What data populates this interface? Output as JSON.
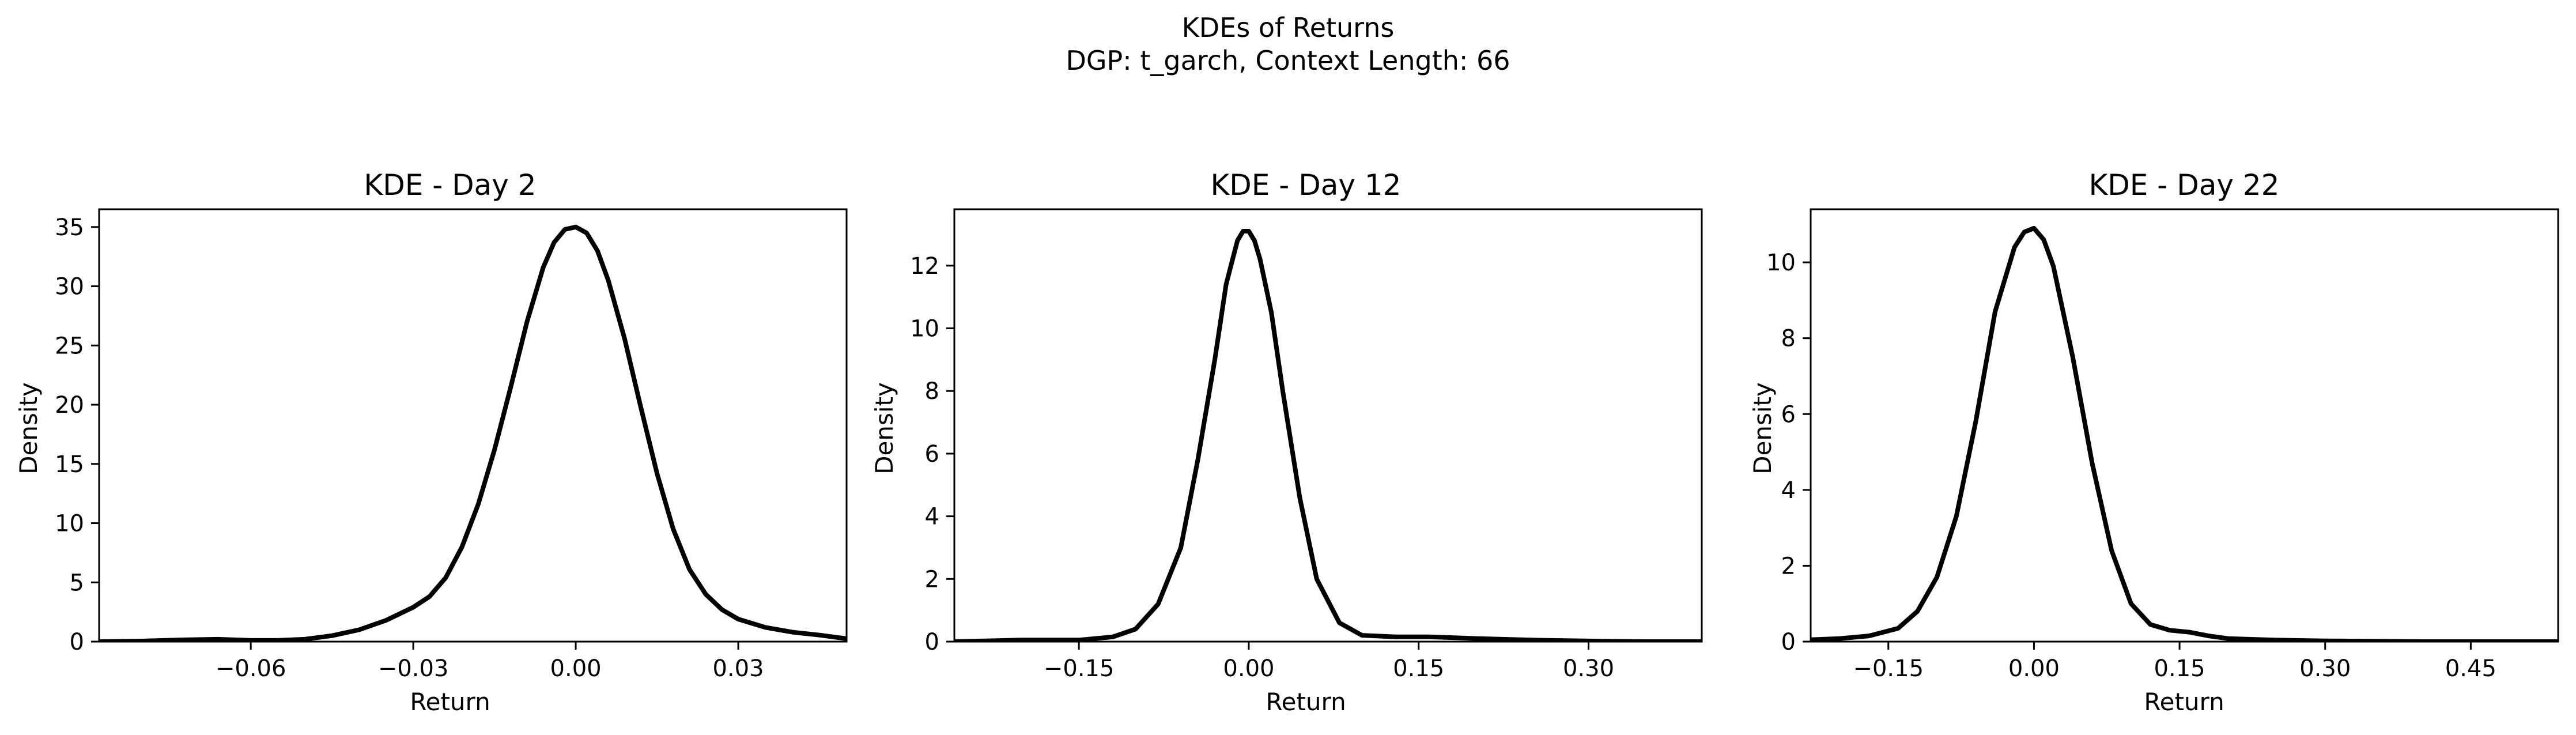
{
  "figure": {
    "title": "KDEs of Returns",
    "subtitle": "DGP: t_garch, Context Length: 66"
  },
  "chart_data": [
    {
      "type": "line",
      "title": "KDE - Day 2",
      "xlabel": "Return",
      "ylabel": "Density",
      "xlim": [
        -0.088,
        0.05
      ],
      "ylim": [
        0,
        36.5
      ],
      "xticks": [
        -0.06,
        -0.03,
        0.0,
        0.03
      ],
      "xtick_labels": [
        "−0.06",
        "−0.03",
        "0.00",
        "0.03"
      ],
      "yticks": [
        0,
        5,
        10,
        15,
        20,
        25,
        30,
        35
      ],
      "ytick_labels": [
        "0",
        "5",
        "10",
        "15",
        "20",
        "25",
        "30",
        "35"
      ],
      "color": "#000000",
      "grid": false,
      "series": [
        {
          "x": [
            -0.088,
            -0.08,
            -0.072,
            -0.066,
            -0.06,
            -0.055,
            -0.05,
            -0.045,
            -0.04,
            -0.035,
            -0.03,
            -0.027,
            -0.024,
            -0.021,
            -0.018,
            -0.015,
            -0.012,
            -0.009,
            -0.006,
            -0.004,
            -0.002,
            0.0,
            0.002,
            0.004,
            0.006,
            0.009,
            0.012,
            0.015,
            0.018,
            0.021,
            0.024,
            0.027,
            0.03,
            0.035,
            0.04,
            0.045,
            0.05
          ],
          "y": [
            0.0,
            0.05,
            0.15,
            0.2,
            0.1,
            0.1,
            0.2,
            0.5,
            1.0,
            1.8,
            2.9,
            3.8,
            5.4,
            8.0,
            11.6,
            16.2,
            21.5,
            27.0,
            31.6,
            33.7,
            34.8,
            35.0,
            34.5,
            33.0,
            30.5,
            25.6,
            19.8,
            14.2,
            9.5,
            6.1,
            4.0,
            2.7,
            1.9,
            1.2,
            0.8,
            0.55,
            0.25
          ]
        }
      ]
    },
    {
      "type": "line",
      "title": "KDE - Day 12",
      "xlabel": "Return",
      "ylabel": "Density",
      "xlim": [
        -0.26,
        0.4
      ],
      "ylim": [
        0,
        13.8
      ],
      "xticks": [
        -0.15,
        0.0,
        0.15,
        0.3
      ],
      "xtick_labels": [
        "−0.15",
        "0.00",
        "0.15",
        "0.30"
      ],
      "yticks": [
        0,
        2,
        4,
        6,
        8,
        10,
        12
      ],
      "ytick_labels": [
        "0",
        "2",
        "4",
        "6",
        "8",
        "10",
        "12"
      ],
      "color": "#000000",
      "grid": false,
      "series": [
        {
          "x": [
            -0.26,
            -0.2,
            -0.15,
            -0.12,
            -0.1,
            -0.08,
            -0.06,
            -0.045,
            -0.03,
            -0.02,
            -0.01,
            -0.005,
            0.0,
            0.005,
            0.01,
            0.02,
            0.03,
            0.045,
            0.06,
            0.08,
            0.1,
            0.13,
            0.16,
            0.2,
            0.25,
            0.3,
            0.35,
            0.4
          ],
          "y": [
            0.0,
            0.05,
            0.05,
            0.15,
            0.4,
            1.2,
            3.0,
            5.8,
            9.0,
            11.4,
            12.8,
            13.1,
            13.1,
            12.8,
            12.2,
            10.5,
            8.0,
            4.6,
            2.0,
            0.6,
            0.2,
            0.15,
            0.15,
            0.1,
            0.05,
            0.02,
            0.0,
            0.0
          ]
        }
      ]
    },
    {
      "type": "line",
      "title": "KDE - Day 22",
      "xlabel": "Return",
      "ylabel": "Density",
      "xlim": [
        -0.23,
        0.54
      ],
      "ylim": [
        0,
        11.4
      ],
      "xticks": [
        -0.15,
        0.0,
        0.15,
        0.3,
        0.45
      ],
      "xtick_labels": [
        "−0.15",
        "0.00",
        "0.15",
        "0.30",
        "0.45"
      ],
      "yticks": [
        0,
        2,
        4,
        6,
        8,
        10
      ],
      "ytick_labels": [
        "0",
        "2",
        "4",
        "6",
        "8",
        "10"
      ],
      "color": "#000000",
      "grid": false,
      "series": [
        {
          "x": [
            -0.23,
            -0.2,
            -0.17,
            -0.14,
            -0.12,
            -0.1,
            -0.08,
            -0.06,
            -0.04,
            -0.02,
            -0.01,
            0.0,
            0.01,
            0.02,
            0.04,
            0.06,
            0.08,
            0.1,
            0.12,
            0.14,
            0.16,
            0.18,
            0.2,
            0.25,
            0.3,
            0.4,
            0.54
          ],
          "y": [
            0.05,
            0.08,
            0.15,
            0.35,
            0.8,
            1.7,
            3.3,
            5.8,
            8.7,
            10.4,
            10.8,
            10.9,
            10.6,
            9.9,
            7.5,
            4.7,
            2.4,
            1.0,
            0.45,
            0.3,
            0.25,
            0.15,
            0.08,
            0.04,
            0.02,
            0.0,
            0.0
          ]
        }
      ]
    }
  ]
}
